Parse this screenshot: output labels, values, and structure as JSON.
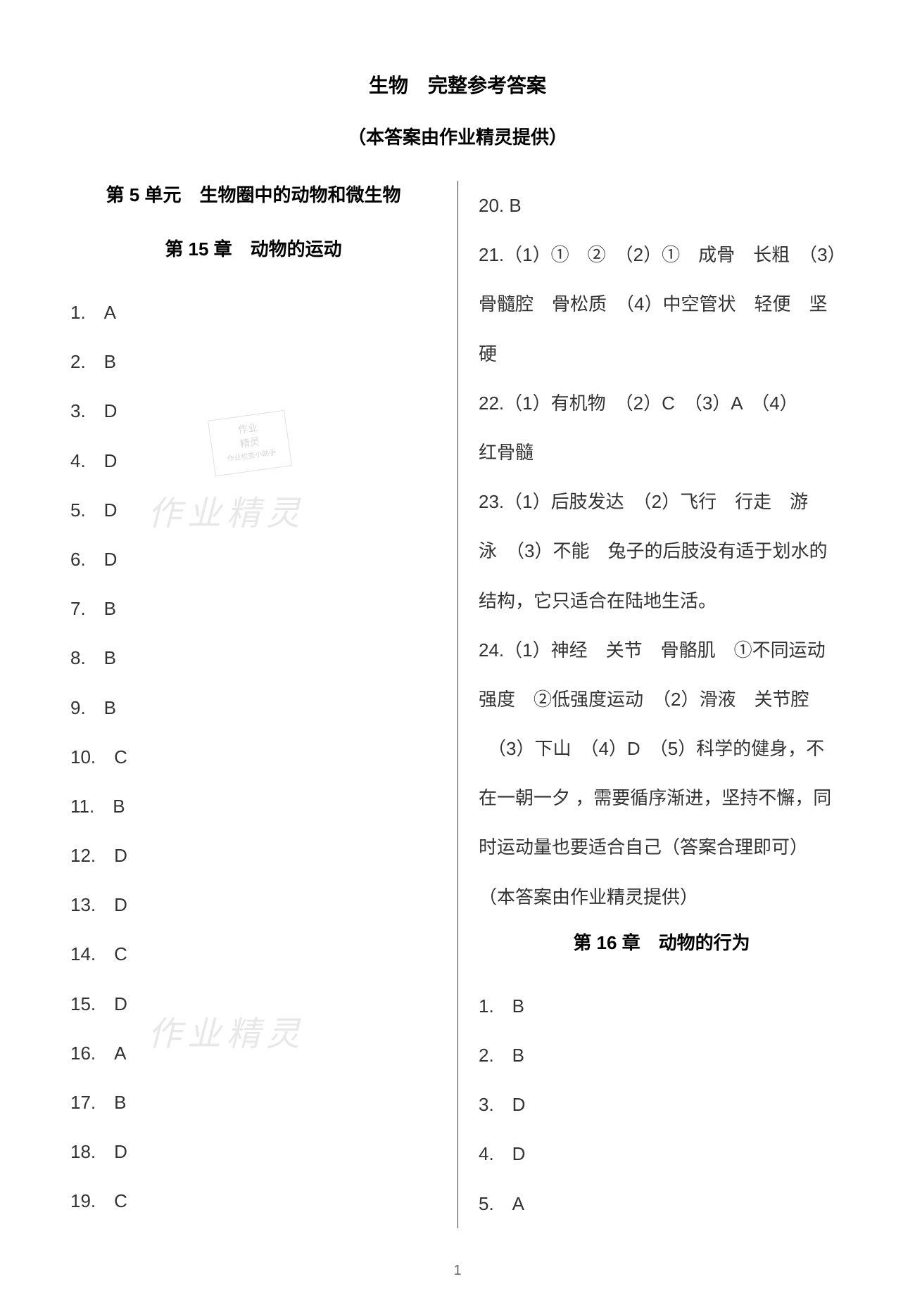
{
  "title": "生物　完整参考答案",
  "subtitle": "（本答案由作业精灵提供）",
  "page_number": "1",
  "watermark_text": "作业精灵",
  "stamp_line1": "作业",
  "stamp_line2": "精灵",
  "stamp_line3": "作业检查小助手",
  "left_column": {
    "unit_heading": "第 5 单元　生物圈中的动物和微生物",
    "chapter_heading": "第 15 章　动物的运动",
    "answers": [
      {
        "num": "1.",
        "val": "A"
      },
      {
        "num": "2.",
        "val": "B"
      },
      {
        "num": "3.",
        "val": "D"
      },
      {
        "num": "4.",
        "val": "D"
      },
      {
        "num": "5.",
        "val": "D"
      },
      {
        "num": "6.",
        "val": "D"
      },
      {
        "num": "7.",
        "val": "B"
      },
      {
        "num": "8.",
        "val": "B"
      },
      {
        "num": "9.",
        "val": "B"
      },
      {
        "num": "10.",
        "val": "C"
      },
      {
        "num": "11.",
        "val": "B"
      },
      {
        "num": "12.",
        "val": "D"
      },
      {
        "num": "13.",
        "val": "D"
      },
      {
        "num": "14.",
        "val": "C"
      },
      {
        "num": "15.",
        "val": "D"
      },
      {
        "num": "16.",
        "val": "A"
      },
      {
        "num": "17.",
        "val": "B"
      },
      {
        "num": "18.",
        "val": "D"
      },
      {
        "num": "19.",
        "val": "C"
      }
    ]
  },
  "right_column": {
    "answer_20": "20. B",
    "long_answers": [
      "21.（1）①　②　（2）①　成骨　长粗　（3）",
      "骨髓腔　骨松质　（4）中空管状　轻便　坚",
      "硬",
      "22.（1）有机物　（2）C　（3）A　（4）",
      "红骨髓",
      "23.（1）后肢发达　（2）飞行　行走　游",
      "泳　（3）不能　兔子的后肢没有适于划水的",
      "结构，它只适合在陆地生活。",
      "24.（1）神经　关节　骨骼肌　①不同运动",
      "强度　②低强度运动　（2）滑液　关节腔",
      "　（3）下山　（4）D　（5）科学的健身，不",
      "在一朝一夕 ，需要循序渐进，坚持不懈，同",
      "时运动量也要适合自己（答案合理即可）",
      "（本答案由作业精灵提供）"
    ],
    "chapter_heading": "第 16 章　动物的行为",
    "answers": [
      {
        "num": "1.",
        "val": "B"
      },
      {
        "num": "2.",
        "val": "B"
      },
      {
        "num": "3.",
        "val": "D"
      },
      {
        "num": "4.",
        "val": "D"
      },
      {
        "num": "5.",
        "val": "A"
      }
    ]
  },
  "colors": {
    "background": "#ffffff",
    "text": "#333333",
    "heading": "#000000",
    "watermark": "#e8e8e8",
    "divider": "#333333"
  },
  "typography": {
    "title_fontsize": 28,
    "body_fontsize": 26,
    "line_height": 2.7
  }
}
